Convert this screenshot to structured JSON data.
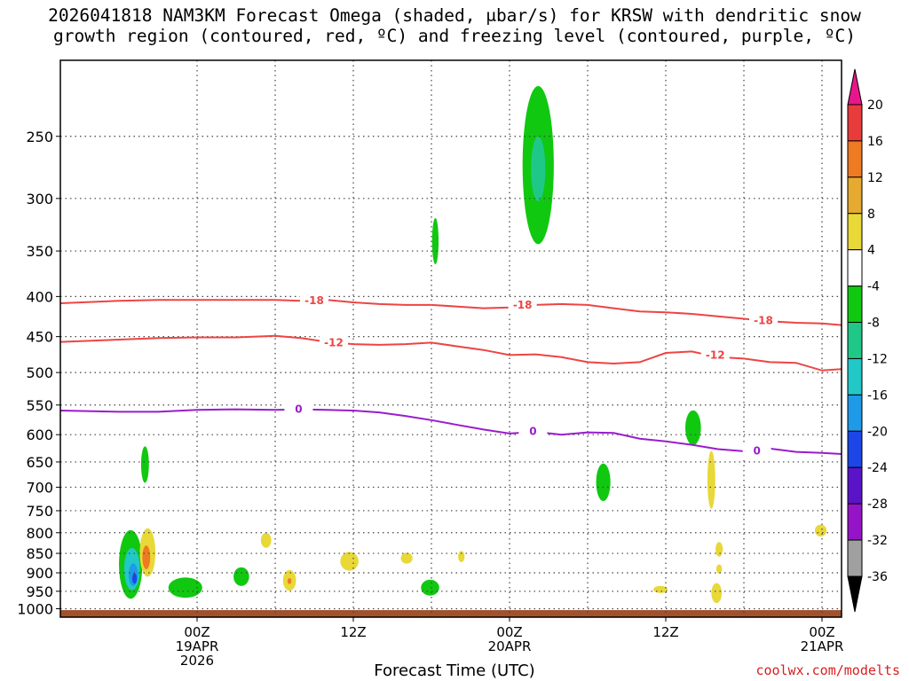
{
  "chart_data": {
    "type": "heatmap",
    "title_line1": "2026041818 NAM3KM Forecast Omega (shaded, μbar/s) for KRSW with dendritic snow",
    "title_line2": "growth region (contoured, red, ºC) and freezing level (contoured, purple, ºC)",
    "xlabel": "Forecast Time (UTC)",
    "credit": "coolwx.com/modelts",
    "x_range_hours": [
      -10.5,
      49.5
    ],
    "y_range_hpa": [
      200,
      1025
    ],
    "y_ticks": [
      250,
      300,
      350,
      400,
      450,
      500,
      550,
      600,
      650,
      700,
      750,
      800,
      850,
      900,
      950,
      1000
    ],
    "x_ticks": [
      {
        "hour": 0,
        "labels": [
          "00Z",
          "19APR",
          "2026"
        ]
      },
      {
        "hour": 12,
        "labels": [
          "12Z"
        ]
      },
      {
        "hour": 24,
        "labels": [
          "00Z",
          "20APR"
        ]
      },
      {
        "hour": 36,
        "labels": [
          "12Z"
        ]
      },
      {
        "hour": 48,
        "labels": [
          "00Z",
          "21APR"
        ]
      }
    ],
    "grid_x_hours": [
      0,
      6,
      12,
      18,
      24,
      30,
      36,
      42,
      48
    ],
    "colorbar": {
      "labels": [
        "20",
        "16",
        "12",
        "8",
        "4",
        "-4",
        "-8",
        "-12",
        "-16",
        "-20",
        "-24",
        "-28",
        "-32",
        "-36"
      ],
      "colors": [
        "#e8168a",
        "#e83c3c",
        "#ee7a22",
        "#e6aa30",
        "#e8d838",
        "#ffffff",
        "#10c810",
        "#20c888",
        "#22c8c8",
        "#1e9ae8",
        "#1c46e6",
        "#5a14c8",
        "#9614c8",
        "#a0a0a0",
        "#000000"
      ]
    },
    "contours": [
      {
        "name": "t-minus-18",
        "label": "-18",
        "color": "#ee4444",
        "x": [
          -10.5,
          -6,
          -3,
          0,
          3,
          6,
          8,
          10,
          12,
          14,
          16,
          18,
          20,
          22,
          24,
          26,
          28,
          30,
          32,
          34,
          36,
          38,
          40,
          42,
          44,
          46,
          48,
          49.5
        ],
        "y": [
          408,
          405,
          404,
          404,
          404,
          404,
          405,
          404,
          407,
          409,
          410,
          410,
          412,
          414,
          413,
          410,
          409,
          410,
          414,
          418,
          419,
          421,
          424,
          427,
          430,
          432,
          433,
          435
        ],
        "label_at": [
          [
            9,
            405
          ],
          [
            25,
            410
          ],
          [
            43.5,
            429
          ]
        ]
      },
      {
        "name": "t-minus-12",
        "label": "-12",
        "color": "#ee4444",
        "x": [
          -10.5,
          -6,
          -3,
          0,
          3,
          6,
          8,
          10,
          12,
          14,
          16,
          18,
          20,
          22,
          24,
          26,
          28,
          30,
          32,
          34,
          36,
          38,
          40,
          42,
          44,
          46,
          48,
          49.5
        ],
        "y": [
          457,
          454,
          452,
          451,
          451,
          449,
          452,
          457,
          460,
          461,
          460,
          458,
          463,
          468,
          475,
          474,
          478,
          485,
          487,
          485,
          472,
          470,
          478,
          480,
          485,
          486,
          497,
          495
        ],
        "label_at": [
          [
            10.5,
            458
          ],
          [
            39.8,
            475
          ]
        ]
      },
      {
        "name": "freezing-level",
        "label": "0",
        "color": "#9a1ccc",
        "x": [
          -10.5,
          -6,
          -3,
          0,
          3,
          6,
          8,
          10,
          12,
          14,
          16,
          18,
          20,
          22,
          24,
          26,
          28,
          30,
          32,
          34,
          36,
          38,
          40,
          42,
          44,
          46,
          48,
          49.5
        ],
        "y": [
          559,
          561,
          561,
          558,
          557,
          558,
          557,
          558,
          559,
          562,
          568,
          575,
          583,
          591,
          598,
          595,
          600,
          596,
          597,
          607,
          612,
          618,
          626,
          630,
          625,
          631,
          633,
          635
        ],
        "label_at": [
          [
            7.8,
            557
          ],
          [
            25.8,
            594
          ],
          [
            43,
            629
          ]
        ]
      }
    ],
    "shaded_regions": [
      {
        "name": "green-upper-plume",
        "color": "#10c810",
        "x_center": 26.2,
        "p_center": 272,
        "half_width_h": 1.2,
        "half_height_hpa": 62
      },
      {
        "name": "teal-upper-core",
        "color": "#20c888",
        "x_center": 26.2,
        "p_center": 275,
        "half_width_h": 0.55,
        "half_height_hpa": 26
      },
      {
        "name": "green-cell-18z",
        "color": "#10c810",
        "x_center": 18.3,
        "p_center": 340,
        "half_width_h": 0.25,
        "half_height_hpa": 23
      },
      {
        "name": "green-cell-20z-mid",
        "color": "#10c810",
        "x_center": 38.1,
        "p_center": 588,
        "half_width_h": 0.6,
        "half_height_hpa": 30
      },
      {
        "name": "green-cell-19z",
        "color": "#10c810",
        "x_center": 31.2,
        "p_center": 690,
        "half_width_h": 0.55,
        "half_height_hpa": 38
      },
      {
        "name": "green-cell-early",
        "color": "#10c810",
        "x_center": -4,
        "p_center": 655,
        "half_width_h": 0.3,
        "half_height_hpa": 35
      },
      {
        "name": "green-low-main",
        "color": "#10c810",
        "x_center": -5.1,
        "p_center": 878,
        "half_width_h": 0.9,
        "half_height_hpa": 88
      },
      {
        "name": "teal-low-core",
        "color": "#22c8c8",
        "x_center": -5.0,
        "p_center": 890,
        "half_width_h": 0.6,
        "half_height_hpa": 55
      },
      {
        "name": "blue-low-core",
        "color": "#1e9ae8",
        "x_center": -4.9,
        "p_center": 905,
        "half_width_h": 0.35,
        "half_height_hpa": 30
      },
      {
        "name": "navy-low-core",
        "color": "#1c46e6",
        "x_center": -4.8,
        "p_center": 915,
        "half_width_h": 0.18,
        "half_height_hpa": 14
      },
      {
        "name": "yellow-low-early",
        "color": "#e8d838",
        "x_center": -3.8,
        "p_center": 848,
        "half_width_h": 0.6,
        "half_height_hpa": 60
      },
      {
        "name": "orange-low-early",
        "color": "#ee7a22",
        "x_center": -3.9,
        "p_center": 860,
        "half_width_h": 0.3,
        "half_height_hpa": 30
      },
      {
        "name": "green-low-2",
        "color": "#10c810",
        "x_center": -0.9,
        "p_center": 940,
        "half_width_h": 1.3,
        "half_height_hpa": 28
      },
      {
        "name": "green-low-3",
        "color": "#10c810",
        "x_center": 3.4,
        "p_center": 910,
        "half_width_h": 0.6,
        "half_height_hpa": 25
      },
      {
        "name": "yellow-low-4",
        "color": "#e8d838",
        "x_center": 5.3,
        "p_center": 818,
        "half_width_h": 0.4,
        "half_height_hpa": 18
      },
      {
        "name": "yellow-low-5",
        "color": "#e8d838",
        "x_center": 7.1,
        "p_center": 920,
        "half_width_h": 0.5,
        "half_height_hpa": 28
      },
      {
        "name": "orange-low-5",
        "color": "#ee7a22",
        "x_center": 7.1,
        "p_center": 922,
        "half_width_h": 0.15,
        "half_height_hpa": 8
      },
      {
        "name": "yellow-low-6",
        "color": "#e8d838",
        "x_center": 11.7,
        "p_center": 870,
        "half_width_h": 0.7,
        "half_height_hpa": 24
      },
      {
        "name": "yellow-low-7",
        "color": "#e8d838",
        "x_center": 16.1,
        "p_center": 862,
        "half_width_h": 0.45,
        "half_height_hpa": 14
      },
      {
        "name": "yellow-low-8",
        "color": "#e8d838",
        "x_center": 20.3,
        "p_center": 858,
        "half_width_h": 0.25,
        "half_height_hpa": 14
      },
      {
        "name": "green-low-9",
        "color": "#10c810",
        "x_center": 17.9,
        "p_center": 940,
        "half_width_h": 0.7,
        "half_height_hpa": 22
      },
      {
        "name": "yellow-low-10",
        "color": "#e8d838",
        "x_center": 35.6,
        "p_center": 945,
        "half_width_h": 0.55,
        "half_height_hpa": 10
      },
      {
        "name": "yellow-plume-21z",
        "color": "#e8d838",
        "x_center": 39.5,
        "p_center": 685,
        "half_width_h": 0.3,
        "half_height_hpa": 58
      },
      {
        "name": "yellow-low-11a",
        "color": "#e8d838",
        "x_center": 40.1,
        "p_center": 840,
        "half_width_h": 0.28,
        "half_height_hpa": 18
      },
      {
        "name": "yellow-low-11b",
        "color": "#e8d838",
        "x_center": 40.1,
        "p_center": 890,
        "half_width_h": 0.22,
        "half_height_hpa": 12
      },
      {
        "name": "yellow-low-11c",
        "color": "#e8d838",
        "x_center": 39.9,
        "p_center": 955,
        "half_width_h": 0.4,
        "half_height_hpa": 28
      },
      {
        "name": "yellow-low-12",
        "color": "#e8d838",
        "x_center": 47.9,
        "p_center": 795,
        "half_width_h": 0.45,
        "half_height_hpa": 14
      }
    ],
    "terrain": {
      "color": "#a0522d",
      "top_hpa": 1004
    }
  }
}
